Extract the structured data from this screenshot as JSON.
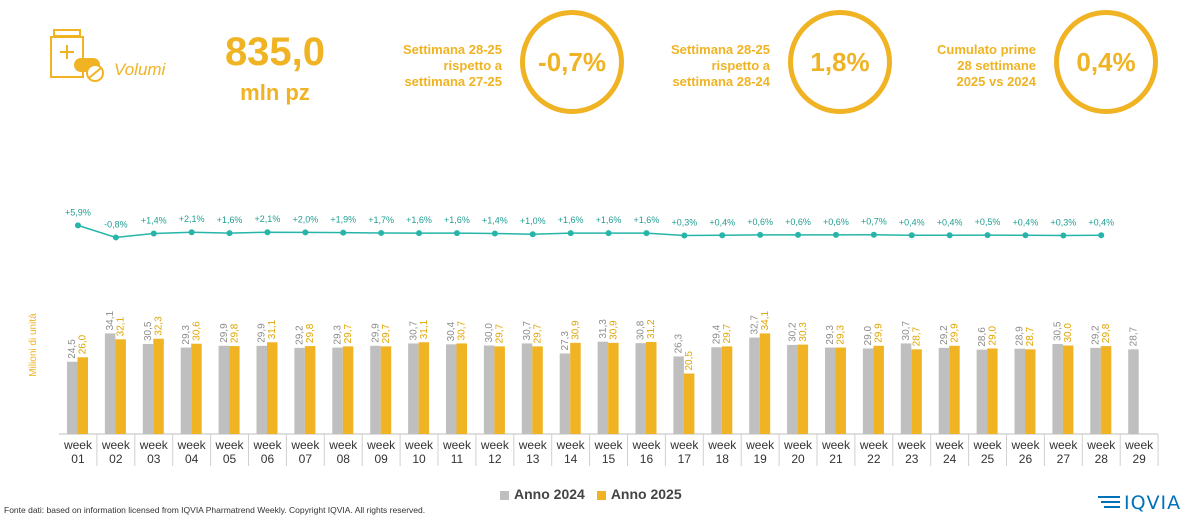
{
  "header": {
    "icon": "medicine-bottle-icon",
    "label": "Volumi",
    "big_value": "835,0",
    "unit": "mln pz"
  },
  "stats": [
    {
      "label": "Settimana 28-25\nrispetto a\nsettimana 27-25",
      "value": "-0,7%"
    },
    {
      "label": "Settimana 28-25\nrispetto a\nsettimana 28-24",
      "value": "1,8%"
    },
    {
      "label": "Cumulato prime\n28 settimane\n2025 vs 2024",
      "value": "0,4%"
    }
  ],
  "colors": {
    "accent": "#f0b323",
    "y2024": "#bfbfbf",
    "y2025": "#f0b323",
    "growth_line": "#26b5a8"
  },
  "chart_data": {
    "type": "bar",
    "ylabel": "Milioni di unità",
    "categories": [
      "week\n01",
      "week\n02",
      "week\n03",
      "week\n04",
      "week\n05",
      "week\n06",
      "week\n07",
      "week\n08",
      "week\n09",
      "week\n10",
      "week\n11",
      "week\n12",
      "week\n13",
      "week\n14",
      "week\n15",
      "week\n16",
      "week\n17",
      "week\n18",
      "week\n19",
      "week\n20",
      "week\n21",
      "week\n22",
      "week\n23",
      "week\n24",
      "week\n25",
      "week\n26",
      "week\n27",
      "week\n28",
      "week\n29"
    ],
    "series": [
      {
        "name": "Anno 2024",
        "values": [
          24.5,
          34.1,
          30.5,
          29.3,
          29.9,
          29.9,
          29.2,
          29.3,
          29.9,
          30.7,
          30.4,
          30.0,
          30.7,
          27.3,
          31.3,
          30.8,
          26.3,
          29.4,
          32.7,
          30.2,
          29.3,
          29.0,
          30.7,
          29.2,
          28.6,
          28.9,
          30.5,
          29.2,
          28.7
        ],
        "labels": [
          "24,5",
          "34,1",
          "30,5",
          "29,3",
          "29,9",
          "29,9",
          "29,2",
          "29,3",
          "29,9",
          "30,7",
          "30,4",
          "30,0",
          "30,7",
          "27,3",
          "31,3",
          "30,8",
          "26,3",
          "29,4",
          "32,7",
          "30,2",
          "29,3",
          "29,0",
          "30,7",
          "29,2",
          "28,6",
          "28,9",
          "30,5",
          "29,2",
          "28,7"
        ]
      },
      {
        "name": "Anno 2025",
        "values": [
          26.0,
          32.1,
          32.3,
          30.6,
          29.8,
          31.1,
          29.8,
          29.7,
          29.7,
          31.1,
          30.7,
          29.7,
          29.7,
          30.9,
          30.9,
          31.2,
          20.5,
          29.7,
          34.1,
          30.3,
          29.3,
          29.9,
          28.7,
          29.9,
          29.0,
          28.7,
          30.0,
          29.8,
          null
        ],
        "labels": [
          "26,0",
          "32,1",
          "32,3",
          "30,6",
          "29,8",
          "31,1",
          "29,8",
          "29,7",
          "29,7",
          "31,1",
          "30,7",
          "29,7",
          "29,7",
          "30,9",
          "30,9",
          "31,2",
          "20,5",
          "29,7",
          "34,1",
          "30,3",
          "29,3",
          "29,9",
          "28,7",
          "29,9",
          "29,0",
          "28,7",
          "30,0",
          "29,8",
          ""
        ]
      }
    ],
    "growth": {
      "values": [
        5.9,
        -0.8,
        1.4,
        2.1,
        1.6,
        2.1,
        2.0,
        1.9,
        1.7,
        1.6,
        1.6,
        1.4,
        1.0,
        1.6,
        1.6,
        1.6,
        0.3,
        0.4,
        0.6,
        0.6,
        0.6,
        0.7,
        0.4,
        0.4,
        0.5,
        0.4,
        0.3,
        0.4
      ],
      "labels": [
        "+5,9%",
        "-0,8%",
        "+1,4%",
        "+2,1%",
        "+1,6%",
        "+2,1%",
        "+2,0%",
        "+1,9%",
        "+1,7%",
        "+1,6%",
        "+1,6%",
        "+1,4%",
        "+1,0%",
        "+1,6%",
        "+1,6%",
        "+1,6%",
        "+0,3%",
        "+0,4%",
        "+0,6%",
        "+0,6%",
        "+0,6%",
        "+0,7%",
        "+0,4%",
        "+0,4%",
        "+0,5%",
        "+0,4%",
        "+0,3%",
        "+0,4%"
      ]
    },
    "legend_position": "bottom"
  },
  "footer": "Fonte dati: based on information licensed from IQVIA Pharmatrend Weekly. Copyright IQVIA. All rights reserved.",
  "logo_text": "IQVIA"
}
